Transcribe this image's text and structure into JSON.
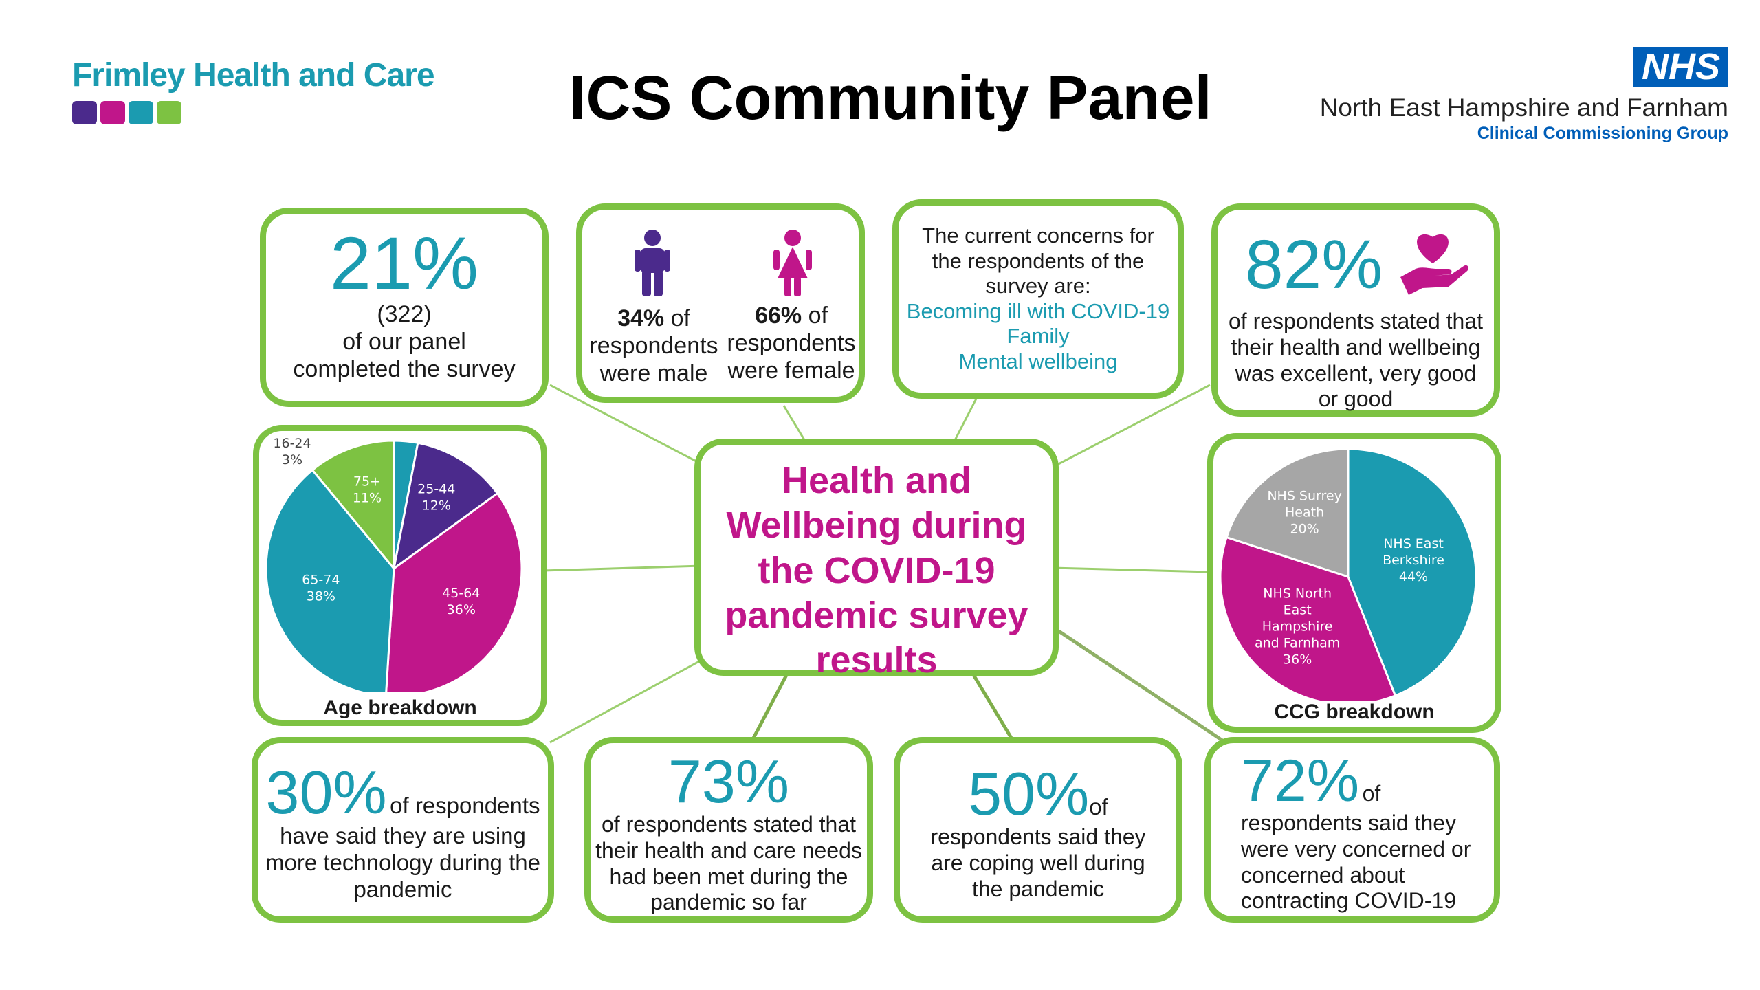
{
  "header": {
    "org_left_name": "Frimley Health and Care",
    "title": "ICS Community Panel",
    "nhs_badge": "NHS",
    "org_right_name": "North East Hampshire and Farnham",
    "org_right_sub": "Clinical Commissioning Group"
  },
  "colors": {
    "green": "#7dc242",
    "teal": "#1b9bb0",
    "magenta": "#c0168a",
    "purple": "#4b2a8c",
    "grey": "#a6a6a6",
    "nhs_blue": "#005eb8"
  },
  "center": {
    "title_lines": [
      "Health and",
      "Wellbeing during",
      "the COVID-19",
      "pandemic survey",
      "results"
    ]
  },
  "panel_completion": {
    "percent": "21%",
    "count": "(322)",
    "line1": "of our panel",
    "line2": "completed the survey"
  },
  "gender": {
    "male": {
      "percent": "34%",
      "suffix": "of",
      "line1": "respondents",
      "line2": "were male",
      "icon": "male-person-icon"
    },
    "female": {
      "percent": "66%",
      "suffix": "of",
      "line1": "respondents",
      "line2": "were female",
      "icon": "female-person-icon"
    }
  },
  "concerns": {
    "intro_lines": [
      "The current concerns for",
      "the respondents of the",
      "survey are:"
    ],
    "items": [
      "Becoming ill with COVID-19",
      "Family",
      "Mental wellbeing"
    ]
  },
  "wellbeing": {
    "percent": "82%",
    "lines": [
      "of respondents stated that",
      "their health and wellbeing",
      "was excellent, very good",
      "or good"
    ],
    "icon": "heart-hand-icon"
  },
  "technology": {
    "percent": "30%",
    "suffix": "of respondents",
    "lines": [
      "have said they are using",
      "more technology during the",
      "pandemic"
    ]
  },
  "care_needs": {
    "percent": "73%",
    "lines": [
      "of respondents stated that",
      "their health and care needs",
      "had been met during the",
      "pandemic so far"
    ]
  },
  "coping": {
    "percent": "50%",
    "suffix": "of",
    "lines": [
      "respondents said they",
      "are coping well during",
      "the pandemic"
    ]
  },
  "contracting": {
    "percent": "72%",
    "suffix": "of",
    "lines": [
      "respondents said they",
      "were very concerned or",
      "concerned about",
      "contracting COVID-19"
    ]
  },
  "chart_data": [
    {
      "type": "pie",
      "title": "Age breakdown",
      "slices": [
        {
          "label": "16-24",
          "value": 3,
          "pct_label": "3%",
          "color": "#1b9bb0"
        },
        {
          "label": "25-44",
          "value": 12,
          "pct_label": "12%",
          "color": "#4b2a8c"
        },
        {
          "label": "45-64",
          "value": 36,
          "pct_label": "36%",
          "color": "#c0168a"
        },
        {
          "label": "65-74",
          "value": 38,
          "pct_label": "38%",
          "color": "#1b9bb0"
        },
        {
          "label": "75+",
          "value": 11,
          "pct_label": "11%",
          "color": "#7dc242"
        }
      ]
    },
    {
      "type": "pie",
      "title": "CCG breakdown",
      "slices": [
        {
          "label_lines": [
            "NHS East",
            "Berkshire"
          ],
          "value": 44,
          "pct_label": "44%",
          "color": "#1b9bb0"
        },
        {
          "label_lines": [
            "NHS North",
            "East",
            "Hampshire",
            "and Farnham"
          ],
          "value": 36,
          "pct_label": "36%",
          "color": "#c0168a"
        },
        {
          "label_lines": [
            "NHS Surrey",
            "Heath"
          ],
          "value": 20,
          "pct_label": "20%",
          "color": "#a6a6a6"
        }
      ]
    }
  ]
}
